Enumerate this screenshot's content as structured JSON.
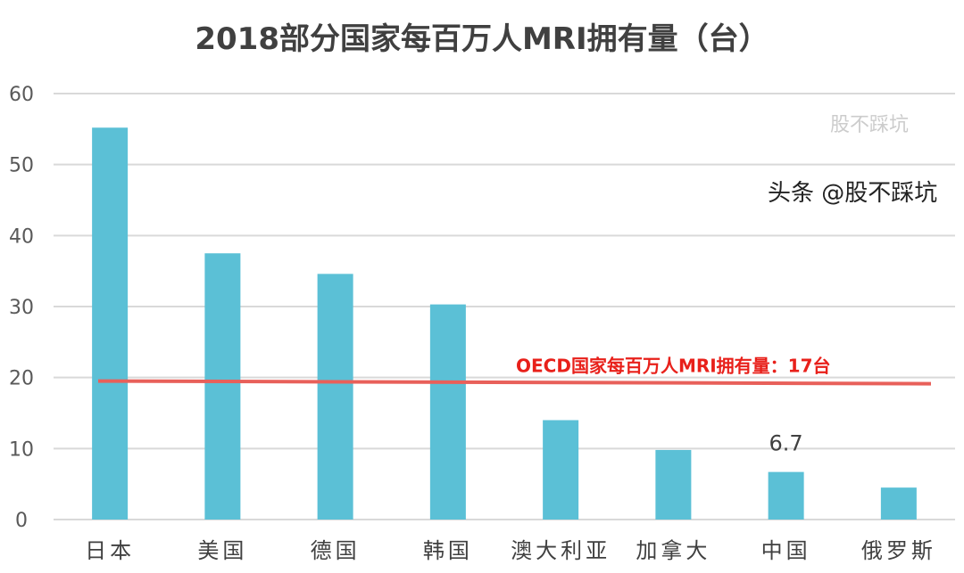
{
  "chart_data": {
    "type": "bar",
    "title": "2018部分国家每百万人MRI拥有量（台）",
    "categories": [
      "日本",
      "美国",
      "德国",
      "韩国",
      "澳大利亚",
      "加拿大",
      "中国",
      "俄罗斯"
    ],
    "values": [
      55.2,
      37.5,
      34.6,
      30.3,
      14.0,
      9.8,
      6.7,
      4.5
    ],
    "ylim": [
      0,
      60
    ],
    "yticks": [
      0,
      10,
      20,
      30,
      40,
      50,
      60
    ],
    "grid": true,
    "bar_color": "#5bc0d6",
    "data_labels": [
      {
        "category": "中国",
        "text": "6.7"
      }
    ],
    "reference_line": {
      "value": 17,
      "label": "OECD国家每百万人MRI拥有量：17台",
      "color": "#e8605a"
    }
  },
  "watermark": {
    "main": "头条 @股不踩坑",
    "faint": "股不踩坑"
  }
}
